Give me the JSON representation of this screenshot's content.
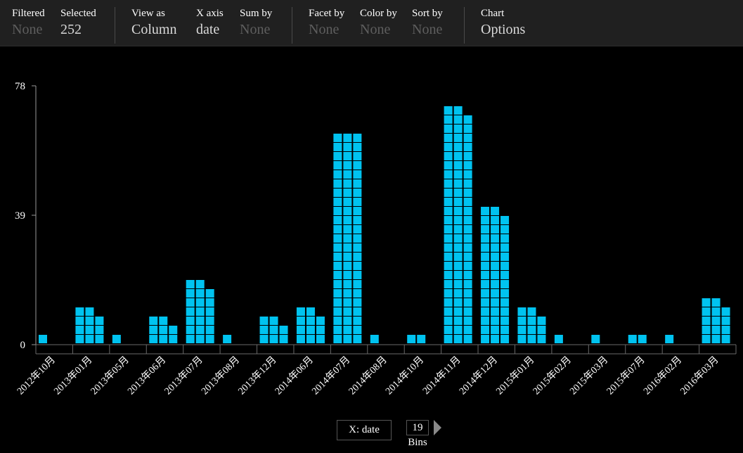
{
  "toolbar": {
    "filtered": {
      "label": "Filtered",
      "value": "None"
    },
    "selected": {
      "label": "Selected",
      "value": "252"
    },
    "view_as": {
      "label": "View as",
      "value": "Column"
    },
    "x_axis": {
      "label": "X axis",
      "value": "date"
    },
    "sum_by": {
      "label": "Sum by",
      "value": "None"
    },
    "facet_by": {
      "label": "Facet by",
      "value": "None"
    },
    "color_by": {
      "label": "Color by",
      "value": "None"
    },
    "sort_by": {
      "label": "Sort by",
      "value": "None"
    },
    "chart": {
      "label": "Chart",
      "value": "Options"
    }
  },
  "controls": {
    "x_button": "X: date",
    "bins_value": "19",
    "bins_label": "Bins"
  },
  "colors": {
    "mark": "#00c3f0",
    "none_text": "#5e5e5e"
  },
  "chart_data": {
    "type": "bar",
    "title": "",
    "xlabel": "",
    "ylabel": "",
    "categories": [
      "2012年10月",
      "2013年01月",
      "2013年05月",
      "2013年06月",
      "2013年07月",
      "2013年08月",
      "2013年12月",
      "2014年06月",
      "2014年07月",
      "2014年08月",
      "2014年10月",
      "2014年11月",
      "2014年12月",
      "2015年01月",
      "2015年02月",
      "2015年03月",
      "2015年07月",
      "2016年02月",
      "2016年03月"
    ],
    "values": [
      1,
      11,
      1,
      8,
      20,
      1,
      8,
      11,
      69,
      1,
      2,
      77,
      44,
      11,
      1,
      1,
      2,
      1,
      14
    ],
    "ylim": [
      0,
      78
    ],
    "yticks": [
      0,
      39,
      78
    ],
    "grid": false,
    "legend": "none"
  }
}
